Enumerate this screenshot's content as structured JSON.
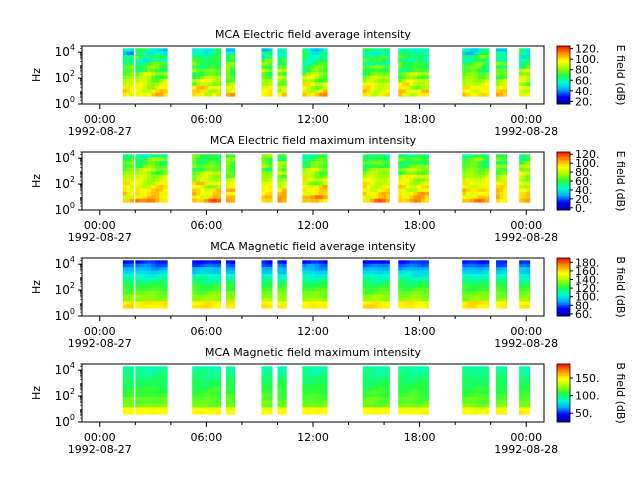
{
  "colors": {
    "colormap": [
      "#0000a0",
      "#0000ff",
      "#00b0ff",
      "#00ffd0",
      "#20ff40",
      "#a0ff00",
      "#ffff00",
      "#ffa000",
      "#ff2000"
    ],
    "axis": "#000000",
    "background": "#ffffff"
  },
  "chart_data": [
    {
      "type": "heatmap",
      "title": "MCA  Electric field average intensity",
      "ylabel": "Hz",
      "yscale": "log",
      "ylim": [
        1,
        30000
      ],
      "y_ticks": [
        {
          "base": "10",
          "exp": "0"
        },
        {
          "base": "10",
          "exp": "2"
        },
        {
          "base": "10",
          "exp": "4"
        }
      ],
      "x_ticks": [
        {
          "time": "00:00",
          "date": "1992-08-27"
        },
        {
          "time": "06:00",
          "date": ""
        },
        {
          "time": "12:00",
          "date": ""
        },
        {
          "time": "18:00",
          "date": ""
        },
        {
          "time": "00:00",
          "date": "1992-08-28"
        }
      ],
      "x_range": [
        "1992-08-26 23:00",
        "1992-08-28 01:00"
      ],
      "data_intervals_hours": [
        [
          1.3,
          1.9
        ],
        [
          2.0,
          3.8
        ],
        [
          5.2,
          6.8
        ],
        [
          7.1,
          7.6
        ],
        [
          9.1,
          9.7
        ],
        [
          10.0,
          10.5
        ],
        [
          11.4,
          12.8
        ],
        [
          14.8,
          16.3
        ],
        [
          16.8,
          18.5
        ],
        [
          20.4,
          21.9
        ],
        [
          22.3,
          22.9
        ],
        [
          23.6,
          24.2
        ]
      ],
      "data_freq_range_hz": [
        4,
        20000
      ],
      "colorbar": {
        "label": "E field (dB)",
        "ticks": [
          "20.",
          "40.",
          "60.",
          "80.",
          "100.",
          "120."
        ],
        "range": [
          15,
          125
        ]
      },
      "profile": "electric"
    },
    {
      "type": "heatmap",
      "title": "MCA  Electric field maximum intensity",
      "ylabel": "Hz",
      "yscale": "log",
      "ylim": [
        1,
        30000
      ],
      "y_ticks": [
        {
          "base": "10",
          "exp": "0"
        },
        {
          "base": "10",
          "exp": "2"
        },
        {
          "base": "10",
          "exp": "4"
        }
      ],
      "x_ticks": [
        {
          "time": "00:00",
          "date": "1992-08-27"
        },
        {
          "time": "06:00",
          "date": ""
        },
        {
          "time": "12:00",
          "date": ""
        },
        {
          "time": "18:00",
          "date": ""
        },
        {
          "time": "00:00",
          "date": "1992-08-28"
        }
      ],
      "x_range": [
        "1992-08-26 23:00",
        "1992-08-28 01:00"
      ],
      "data_intervals_hours": [
        [
          1.3,
          1.9
        ],
        [
          2.0,
          3.8
        ],
        [
          5.2,
          6.8
        ],
        [
          7.1,
          7.6
        ],
        [
          9.1,
          9.7
        ],
        [
          10.0,
          10.5
        ],
        [
          11.4,
          12.8
        ],
        [
          14.8,
          16.3
        ],
        [
          16.8,
          18.5
        ],
        [
          20.4,
          21.9
        ],
        [
          22.3,
          22.9
        ],
        [
          23.6,
          24.2
        ]
      ],
      "data_freq_range_hz": [
        4,
        20000
      ],
      "colorbar": {
        "label": "E field (dB)",
        "ticks": [
          "0.",
          "20.",
          "40.",
          "60.",
          "80.",
          "100.",
          "120."
        ],
        "range": [
          -5,
          125
        ]
      },
      "profile": "electric_max"
    },
    {
      "type": "heatmap",
      "title": "MCA  Magnetic field average intensity",
      "ylabel": "Hz",
      "yscale": "log",
      "ylim": [
        1,
        30000
      ],
      "y_ticks": [
        {
          "base": "10",
          "exp": "0"
        },
        {
          "base": "10",
          "exp": "2"
        },
        {
          "base": "10",
          "exp": "4"
        }
      ],
      "x_ticks": [
        {
          "time": "00:00",
          "date": "1992-08-27"
        },
        {
          "time": "06:00",
          "date": ""
        },
        {
          "time": "12:00",
          "date": ""
        },
        {
          "time": "18:00",
          "date": ""
        },
        {
          "time": "00:00",
          "date": "1992-08-28"
        }
      ],
      "x_range": [
        "1992-08-26 23:00",
        "1992-08-28 01:00"
      ],
      "data_intervals_hours": [
        [
          1.3,
          1.9
        ],
        [
          2.0,
          3.8
        ],
        [
          5.2,
          6.8
        ],
        [
          7.1,
          7.6
        ],
        [
          9.1,
          9.7
        ],
        [
          10.0,
          10.5
        ],
        [
          11.4,
          12.8
        ],
        [
          14.8,
          16.3
        ],
        [
          16.8,
          18.5
        ],
        [
          20.4,
          21.9
        ],
        [
          22.3,
          22.9
        ],
        [
          23.6,
          24.2
        ]
      ],
      "data_freq_range_hz": [
        4,
        20000
      ],
      "colorbar": {
        "label": "B field (dB)",
        "ticks": [
          "60.",
          "80.",
          "100.",
          "120.",
          "140.",
          "160.",
          "180."
        ],
        "range": [
          55,
          190
        ]
      },
      "profile": "magnetic"
    },
    {
      "type": "heatmap",
      "title": "MCA  Magnetic field maximum intensity",
      "ylabel": "Hz",
      "yscale": "log",
      "ylim": [
        1,
        30000
      ],
      "y_ticks": [
        {
          "base": "10",
          "exp": "0"
        },
        {
          "base": "10",
          "exp": "2"
        },
        {
          "base": "10",
          "exp": "4"
        }
      ],
      "x_ticks": [
        {
          "time": "00:00",
          "date": "1992-08-27"
        },
        {
          "time": "06:00",
          "date": ""
        },
        {
          "time": "12:00",
          "date": ""
        },
        {
          "time": "18:00",
          "date": ""
        },
        {
          "time": "00:00",
          "date": "1992-08-28"
        }
      ],
      "x_range": [
        "1992-08-26 23:00",
        "1992-08-28 01:00"
      ],
      "data_intervals_hours": [
        [
          1.3,
          1.9
        ],
        [
          2.0,
          3.8
        ],
        [
          5.2,
          6.8
        ],
        [
          7.1,
          7.6
        ],
        [
          9.1,
          9.7
        ],
        [
          10.0,
          10.5
        ],
        [
          11.4,
          12.8
        ],
        [
          14.8,
          16.3
        ],
        [
          16.8,
          18.5
        ],
        [
          20.4,
          21.9
        ],
        [
          22.3,
          22.9
        ],
        [
          23.6,
          24.2
        ]
      ],
      "data_freq_range_hz": [
        4,
        20000
      ],
      "colorbar": {
        "label": "B field (dB)",
        "ticks": [
          "50.",
          "100.",
          "150."
        ],
        "range": [
          25,
          190
        ]
      },
      "profile": "magnetic_max"
    }
  ]
}
